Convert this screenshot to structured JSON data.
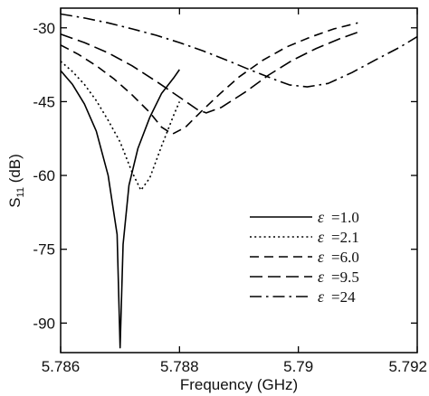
{
  "chart_data": {
    "type": "line",
    "title": "",
    "xlabel": "Frequency (GHz)",
    "ylabel_main": "S",
    "ylabel_sub": "11",
    "ylabel_unit": " (dB)",
    "xlim": [
      5.786,
      5.792
    ],
    "ylim": [
      -96,
      -26
    ],
    "x_ticks": [
      5.786,
      5.788,
      5.79,
      5.792
    ],
    "x_tick_labels": [
      "5.786",
      "5.788",
      "5.79",
      "5.792"
    ],
    "y_ticks": [
      -90,
      -75,
      -60,
      -45,
      -30
    ],
    "y_tick_labels": [
      "-90",
      "-75",
      "-60",
      "-45",
      "-30"
    ],
    "grid": false,
    "legend_position": "lower-right",
    "legend_symbol": "ε",
    "series": [
      {
        "name": "=1.0",
        "dash": "solid",
        "points": [
          [
            5.786,
            -38.7
          ],
          [
            5.7862,
            -41.5
          ],
          [
            5.7864,
            -45.5
          ],
          [
            5.7866,
            -51.0
          ],
          [
            5.7868,
            -60.0
          ],
          [
            5.78695,
            -72.0
          ],
          [
            5.787,
            -95.0
          ],
          [
            5.78705,
            -74.0
          ],
          [
            5.78715,
            -62.0
          ],
          [
            5.7873,
            -54.5
          ],
          [
            5.7875,
            -48.2
          ],
          [
            5.7877,
            -43.3
          ],
          [
            5.7879,
            -40.2
          ],
          [
            5.788,
            -38.5
          ]
        ]
      },
      {
        "name": "=2.1",
        "dash": "dotted",
        "points": [
          [
            5.786,
            -36.8
          ],
          [
            5.7862,
            -38.9
          ],
          [
            5.7864,
            -41.5
          ],
          [
            5.7866,
            -44.8
          ],
          [
            5.7868,
            -48.8
          ],
          [
            5.787,
            -53.2
          ],
          [
            5.7872,
            -59.3
          ],
          [
            5.78735,
            -63.0
          ],
          [
            5.7875,
            -60.5
          ],
          [
            5.7877,
            -54.0
          ],
          [
            5.7879,
            -47.8
          ],
          [
            5.788,
            -45.0
          ]
        ]
      },
      {
        "name": "=6.0",
        "dash": "dash",
        "points": [
          [
            5.786,
            -33.5
          ],
          [
            5.7863,
            -35.4
          ],
          [
            5.7866,
            -37.7
          ],
          [
            5.7869,
            -40.4
          ],
          [
            5.7872,
            -43.6
          ],
          [
            5.7875,
            -47.2
          ],
          [
            5.7877,
            -50.2
          ],
          [
            5.78788,
            -51.6
          ],
          [
            5.7881,
            -50.2
          ],
          [
            5.7884,
            -46.6
          ],
          [
            5.7887,
            -43.2
          ],
          [
            5.789,
            -40.0
          ],
          [
            5.7894,
            -36.6
          ],
          [
            5.7898,
            -33.9
          ],
          [
            5.7902,
            -31.9
          ],
          [
            5.7906,
            -30.2
          ],
          [
            5.791,
            -29.0
          ]
        ]
      },
      {
        "name": "=9.5",
        "dash": "longdash",
        "points": [
          [
            5.786,
            -31.3
          ],
          [
            5.7864,
            -33.0
          ],
          [
            5.7868,
            -35.1
          ],
          [
            5.7872,
            -37.7
          ],
          [
            5.7876,
            -40.8
          ],
          [
            5.788,
            -44.1
          ],
          [
            5.7883,
            -46.6
          ],
          [
            5.78845,
            -47.3
          ],
          [
            5.7887,
            -46.2
          ],
          [
            5.7891,
            -43.1
          ],
          [
            5.7895,
            -39.6
          ],
          [
            5.7899,
            -36.6
          ],
          [
            5.7903,
            -34.2
          ],
          [
            5.7907,
            -32.2
          ],
          [
            5.791,
            -30.9
          ]
        ]
      },
      {
        "name": "=24",
        "dash": "dashdot",
        "points": [
          [
            5.786,
            -27.2
          ],
          [
            5.7864,
            -28.0
          ],
          [
            5.7868,
            -29.0
          ],
          [
            5.7872,
            -30.2
          ],
          [
            5.7876,
            -31.5
          ],
          [
            5.788,
            -33.0
          ],
          [
            5.7884,
            -34.7
          ],
          [
            5.7888,
            -36.6
          ],
          [
            5.7892,
            -38.6
          ],
          [
            5.7896,
            -40.5
          ],
          [
            5.78985,
            -41.6
          ],
          [
            5.79015,
            -42.0
          ],
          [
            5.7905,
            -41.3
          ],
          [
            5.7909,
            -39.1
          ],
          [
            5.7913,
            -36.5
          ],
          [
            5.7917,
            -34.0
          ],
          [
            5.792,
            -31.8
          ]
        ]
      }
    ]
  }
}
